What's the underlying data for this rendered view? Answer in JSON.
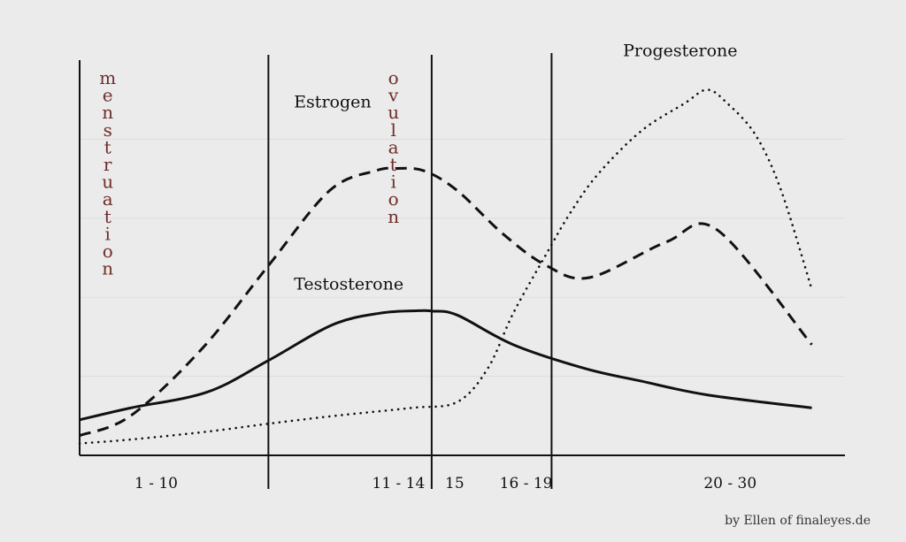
{
  "chart_data": {
    "type": "line",
    "title": "",
    "xlabel": "",
    "ylabel": "",
    "x_domain": [
      0,
      30
    ],
    "ylim": [
      0,
      100
    ],
    "grid": true,
    "phase_labels": [
      "1 - 10",
      "11 - 14",
      "15",
      "16 - 19",
      "20 - 30"
    ],
    "phase_label_x": [
      3,
      12.5,
      14.7,
      17.5,
      25.5
    ],
    "phase_boundaries": [
      7.4,
      13.8,
      18.5
    ],
    "vertical_annotations": [
      {
        "text": "menstruation",
        "x": 1.1
      },
      {
        "text": "ovulation",
        "x": 12.3
      }
    ],
    "series": [
      {
        "name": "Estrogen",
        "style": "dashed",
        "x": [
          0,
          2,
          4.8,
          7.4,
          9.8,
          11.6,
          12.4,
          13.5,
          14.8,
          16.6,
          18.3,
          20,
          23,
          25,
          28.7
        ],
        "y": [
          5,
          10,
          27,
          48,
          67,
          72,
          72.6,
          72,
          67,
          56,
          48,
          45,
          54,
          57,
          28
        ]
      },
      {
        "name": "Testosterone",
        "style": "solid",
        "x": [
          0,
          2,
          5,
          7.4,
          9.9,
          11.8,
          13.3,
          13.8,
          14.8,
          17,
          19.8,
          22,
          24.6,
          28.7
        ],
        "y": [
          9,
          12,
          16,
          24,
          33,
          36,
          36.6,
          36.5,
          35.5,
          28,
          22,
          18.8,
          15.3,
          12
        ]
      },
      {
        "name": "Progesterone",
        "style": "dotted",
        "x": [
          0,
          2,
          5,
          7.4,
          10,
          13,
          14.8,
          16,
          17,
          18.3,
          19.2,
          20.3,
          22,
          23.7,
          24.6,
          25.4,
          26.5,
          27.5,
          28.7
        ],
        "y": [
          3,
          4,
          6,
          8,
          10,
          12,
          13.5,
          22,
          36,
          51,
          61,
          71,
          82,
          89,
          92.5,
          89,
          81,
          67,
          42
        ]
      }
    ],
    "series_labels": [
      {
        "text": "Estrogen",
        "x": 8.4,
        "y": 88
      },
      {
        "text": "Testosterone",
        "x": 8.4,
        "y": 42
      },
      {
        "text": "Progesterone",
        "x": 21.3,
        "y": 101
      }
    ]
  },
  "credit": "by Ellen of finaleyes.de"
}
